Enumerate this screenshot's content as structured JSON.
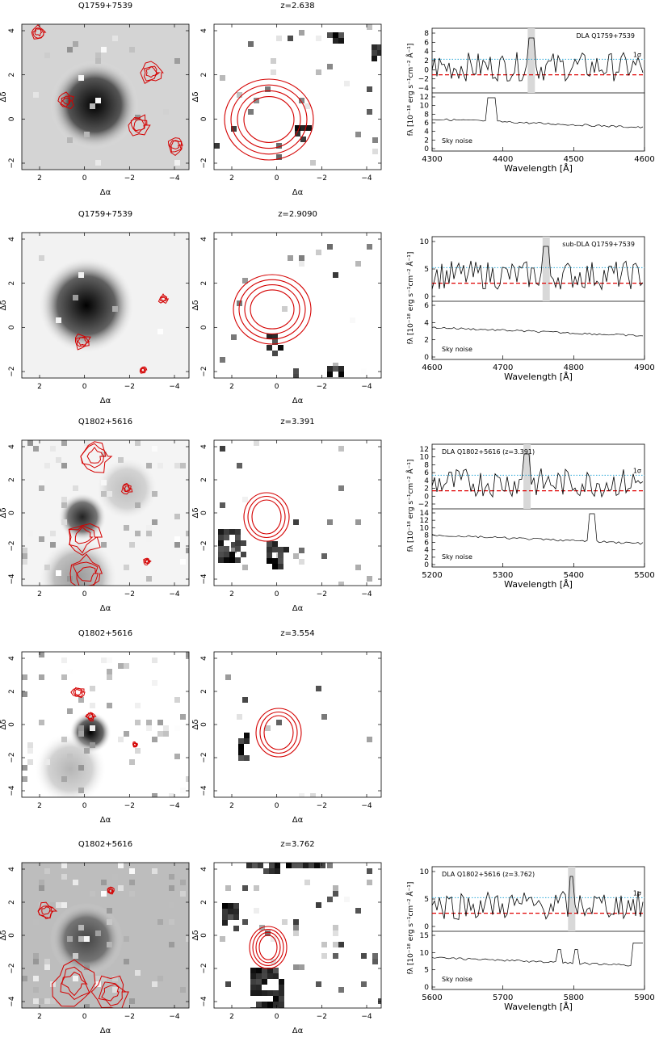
{
  "figure": {
    "rows": [
      {
        "image_title": "Q1759+7539",
        "contour_title": "z=2.638",
        "x_ticks": [
          "2",
          "0",
          "−2",
          "−4"
        ],
        "y_ticks": [
          "4",
          "2",
          "0",
          "−2"
        ],
        "spectrum": {
          "label": "DLA  Q1759+7539",
          "sigma": "1σ",
          "x_range": [
            4300,
            4600
          ],
          "x_ticks": [
            "4300",
            "4400",
            "4500",
            "4600"
          ],
          "top_ticks": [
            "8",
            "6",
            "4",
            "2",
            "0",
            "−2",
            "−4"
          ],
          "bottom_ticks": [
            "12",
            "10",
            "8",
            "6",
            "4",
            "2",
            "0"
          ],
          "sky_label": "Sky noise",
          "ylabel": "fλ [10⁻¹⁸ erg s⁻¹cm⁻² Å⁻¹]",
          "xlabel": "Wavelength [Å]"
        }
      },
      {
        "image_title": "Q1759+7539",
        "contour_title": "z=2.9090",
        "x_ticks": [
          "2",
          "0",
          "−2",
          "−4"
        ],
        "y_ticks": [
          "4",
          "2",
          "0",
          "−2"
        ],
        "spectrum": {
          "label": "sub-DLA  Q1759+7539",
          "sigma": "",
          "x_range": [
            4600,
            4900
          ],
          "x_ticks": [
            "4600",
            "4700",
            "4800",
            "4900"
          ],
          "top_ticks": [
            "10",
            "5",
            "0"
          ],
          "bottom_ticks": [
            "6",
            "4",
            "2",
            "0"
          ],
          "sky_label": "Sky noise",
          "ylabel": "fλ [10⁻¹⁸ erg s⁻¹cm⁻² Å⁻¹]",
          "xlabel": "Wavelength [Å]"
        }
      },
      {
        "image_title": "Q1802+5616",
        "contour_title": "z=3.391",
        "x_ticks": [
          "2",
          "0",
          "−2",
          "−4"
        ],
        "y_ticks": [
          "4",
          "2",
          "0",
          "−2",
          "−4"
        ],
        "spectrum": {
          "label": "DLA Q1802+5616 (z=3.391)",
          "sigma": "1σ",
          "x_range": [
            5200,
            5500
          ],
          "x_ticks": [
            "5200",
            "5300",
            "5400",
            "5500"
          ],
          "top_ticks": [
            "12",
            "10",
            "8",
            "6",
            "4",
            "2",
            "0",
            "−2"
          ],
          "bottom_ticks": [
            "14",
            "12",
            "10",
            "8",
            "6",
            "4",
            "2",
            "0"
          ],
          "sky_label": "Sky noise",
          "ylabel": "fλ [10⁻¹⁸ erg s⁻¹cm⁻² Å⁻¹]",
          "xlabel": "Wavelength [Å]"
        }
      },
      {
        "image_title": "Q1802+5616",
        "contour_title": "z=3.554",
        "x_ticks": [
          "2",
          "0",
          "−2",
          "−4"
        ],
        "y_ticks": [
          "4",
          "2",
          "0",
          "−2",
          "−4"
        ],
        "spectrum": null
      },
      {
        "image_title": "Q1802+5616",
        "contour_title": "z=3.762",
        "x_ticks": [
          "2",
          "0",
          "−2",
          "−4"
        ],
        "y_ticks": [
          "4",
          "2",
          "0",
          "−2",
          "−4"
        ],
        "spectrum": {
          "label": "DLA Q1802+5616 (z=3.762)",
          "sigma": "1σ",
          "x_range": [
            5600,
            5900
          ],
          "x_ticks": [
            "5600",
            "5700",
            "5800",
            "5900"
          ],
          "top_ticks": [
            "10",
            "5",
            "0"
          ],
          "bottom_ticks": [
            "15",
            "10",
            "5",
            "0"
          ],
          "sky_label": "Sky noise",
          "ylabel": "fλ [10⁻¹⁸ erg s⁻¹cm⁻² Å⁻¹]",
          "xlabel": "Wavelength [Å]"
        }
      }
    ],
    "axis_labels": {
      "x": "Δα",
      "y": "Δδ"
    },
    "colors": {
      "contour": "#d40000",
      "zero_line": "#e00000",
      "sigma_line": "#2aa8d8",
      "shade": "#d8d8d8"
    }
  }
}
